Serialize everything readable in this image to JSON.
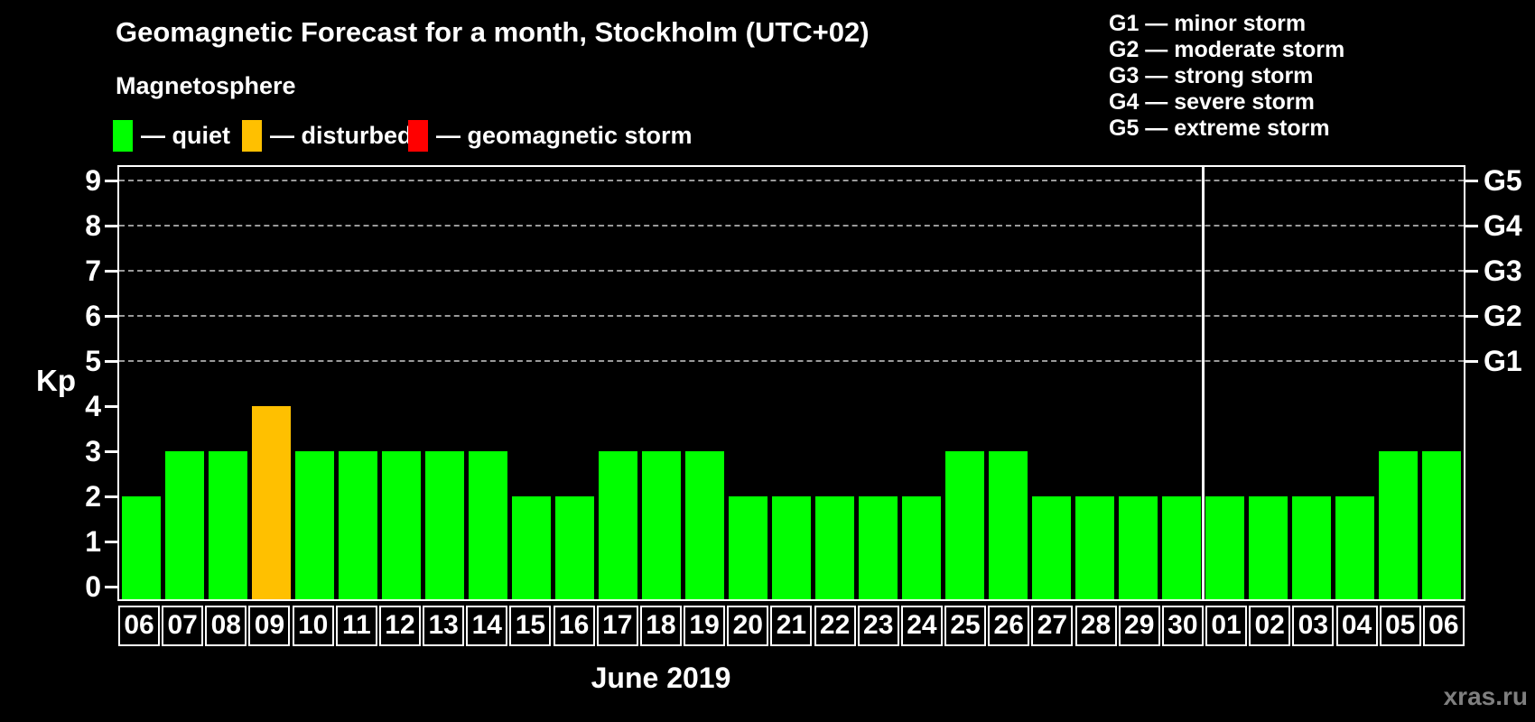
{
  "header": {
    "title": "Geomagnetic Forecast for a month, Stockholm (UTC+02)"
  },
  "legend": {
    "title": "Magnetosphere",
    "items": [
      {
        "status": "quiet",
        "label": "— quiet",
        "color": "#00FF00"
      },
      {
        "status": "disturbed",
        "label": "— disturbed",
        "color": "#FFC000"
      },
      {
        "status": "storm",
        "label": "— geomagnetic storm",
        "color": "#FF0000"
      }
    ]
  },
  "g_scale_legend": {
    "items": [
      "G1 — minor storm",
      "G2 — moderate storm",
      "G3 — strong storm",
      "G4 — severe storm",
      "G5 — extreme storm"
    ]
  },
  "axes": {
    "y_label": "Kp",
    "x_label": "June 2019",
    "y_ticks": [
      0,
      1,
      2,
      3,
      4,
      5,
      6,
      7,
      8,
      9
    ],
    "right_axis": [
      {
        "kp": 5,
        "label": "G1"
      },
      {
        "kp": 6,
        "label": "G2"
      },
      {
        "kp": 7,
        "label": "G3"
      },
      {
        "kp": 8,
        "label": "G4"
      },
      {
        "kp": 9,
        "label": "G5"
      }
    ]
  },
  "watermark": "xras.ru",
  "colors": {
    "background": "#000000",
    "quiet": "#00FF00",
    "disturbed": "#FFC000",
    "storm": "#FF0000",
    "grid": "#9A9A9A",
    "axis": "#FFFFFF",
    "watermark": "#7F7F7F"
  },
  "chart_data": {
    "type": "bar",
    "title": "Geomagnetic Forecast for a month, Stockholm (UTC+02)",
    "xlabel": "June 2019",
    "ylabel": "Kp",
    "ylim": [
      0,
      9.3
    ],
    "grid": "dashed horizontal gridlines only at Kp 5,6,7,8,9 (storm levels G1–G5)",
    "gridlines_at": [
      5,
      6,
      7,
      8,
      9
    ],
    "legend_position": "top-left",
    "categories": [
      "06",
      "07",
      "08",
      "09",
      "10",
      "11",
      "12",
      "13",
      "14",
      "15",
      "16",
      "17",
      "18",
      "19",
      "20",
      "21",
      "22",
      "23",
      "24",
      "25",
      "26",
      "27",
      "28",
      "29",
      "30",
      "01",
      "02",
      "03",
      "04",
      "05",
      "06"
    ],
    "values": [
      2,
      3,
      3,
      4,
      3,
      3,
      3,
      3,
      3,
      2,
      2,
      3,
      3,
      3,
      2,
      2,
      2,
      2,
      2,
      3,
      3,
      2,
      2,
      2,
      2,
      2,
      2,
      2,
      2,
      3,
      3
    ],
    "statuses": [
      "quiet",
      "quiet",
      "quiet",
      "disturbed",
      "quiet",
      "quiet",
      "quiet",
      "quiet",
      "quiet",
      "quiet",
      "quiet",
      "quiet",
      "quiet",
      "quiet",
      "quiet",
      "quiet",
      "quiet",
      "quiet",
      "quiet",
      "quiet",
      "quiet",
      "quiet",
      "quiet",
      "quiet",
      "quiet",
      "quiet",
      "quiet",
      "quiet",
      "quiet",
      "quiet",
      "quiet"
    ],
    "month_boundary_after_index": 24,
    "right_axis_labels": [
      "G1",
      "G2",
      "G3",
      "G4",
      "G5"
    ]
  }
}
